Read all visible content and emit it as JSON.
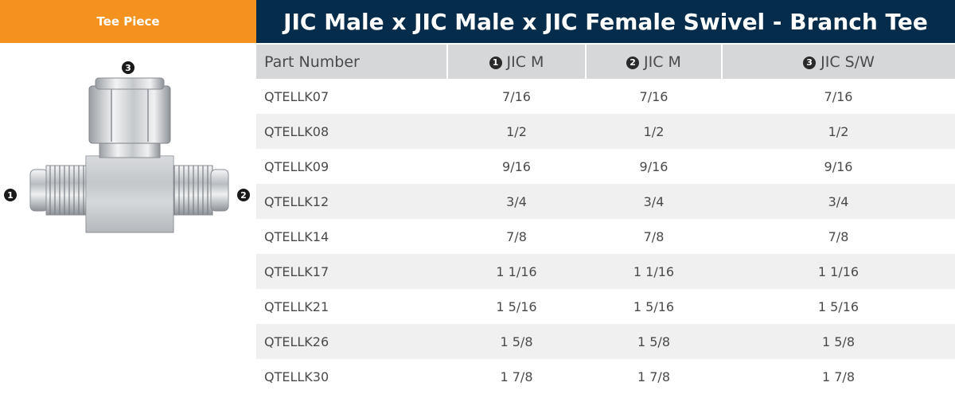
{
  "left_tab": {
    "label": "Tee Piece"
  },
  "title": "JIC Male x JIC Male x JIC Female Swivel - Branch Tee",
  "diagram": {
    "marker_1": "1",
    "marker_2": "2",
    "marker_3": "3"
  },
  "table": {
    "headers": [
      {
        "num": "",
        "label": "Part Number"
      },
      {
        "num": "1",
        "label": "JIC M"
      },
      {
        "num": "2",
        "label": "JIC M"
      },
      {
        "num": "3",
        "label": "JIC S/W"
      }
    ],
    "rows": [
      [
        "QTELLK07",
        "7/16",
        "7/16",
        "7/16"
      ],
      [
        "QTELLK08",
        "1/2",
        "1/2",
        "1/2"
      ],
      [
        "QTELLK09",
        "9/16",
        "9/16",
        "9/16"
      ],
      [
        "QTELLK12",
        "3/4",
        "3/4",
        "3/4"
      ],
      [
        "QTELLK14",
        "7/8",
        "7/8",
        "7/8"
      ],
      [
        "QTELLK17",
        "1 1/16",
        "1 1/16",
        "1 1/16"
      ],
      [
        "QTELLK21",
        "1 5/16",
        "1 5/16",
        "1 5/16"
      ],
      [
        "QTELLK26",
        "1 5/8",
        "1 5/8",
        "1 5/8"
      ],
      [
        "QTELLK30",
        "1 7/8",
        "1 7/8",
        "1 7/8"
      ]
    ]
  },
  "colors": {
    "accent_orange": "#f3921f",
    "header_navy": "#062c4b",
    "header_gray": "#d6d7d9",
    "stripe": "#f0f0f1"
  }
}
